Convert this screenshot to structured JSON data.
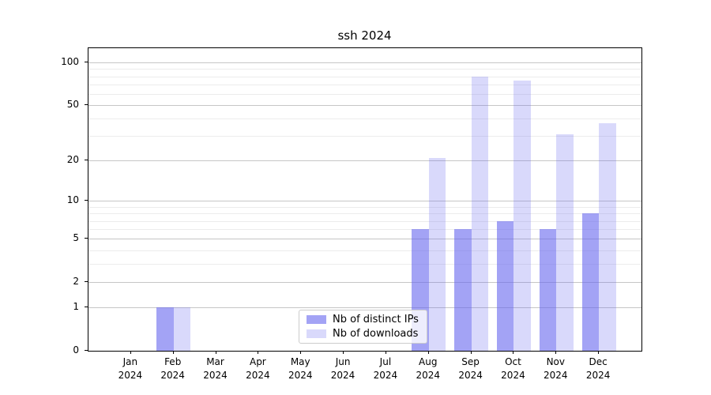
{
  "title": "ssh 2024",
  "chart_data": {
    "type": "bar",
    "title": "ssh 2024",
    "categories": [
      "Jan 2024",
      "Feb 2024",
      "Mar 2024",
      "Apr 2024",
      "May 2024",
      "Jun 2024",
      "Jul 2024",
      "Aug 2024",
      "Sep 2024",
      "Oct 2024",
      "Nov 2024",
      "Dec 2024"
    ],
    "x_tick_line1": [
      "Jan",
      "Feb",
      "Mar",
      "Apr",
      "May",
      "Jun",
      "Jul",
      "Aug",
      "Sep",
      "Oct",
      "Nov",
      "Dec"
    ],
    "x_tick_line2": "2024",
    "series": [
      {
        "name": "Nb of distinct IPs",
        "color": "#6666ee",
        "alpha": 0.6,
        "values": [
          0,
          1,
          0,
          0,
          0,
          0,
          0,
          6,
          6,
          7,
          6,
          8
        ]
      },
      {
        "name": "Nb of downloads",
        "color": "#6666ee",
        "alpha": 0.25,
        "values": [
          0,
          1,
          0,
          0,
          0,
          0,
          0,
          21,
          80,
          75,
          31,
          37
        ]
      }
    ],
    "yscale": "log(1+y)",
    "yticks": [
      0,
      1,
      2,
      5,
      10,
      20,
      50,
      100
    ],
    "minor_yticks": [
      3,
      4,
      6,
      7,
      8,
      9,
      30,
      40,
      60,
      70,
      80,
      90
    ],
    "ylim": [
      0,
      126
    ],
    "grid": true,
    "legend_position": "inside lower center"
  },
  "legend": {
    "items": [
      {
        "label": "Nb of distinct IPs"
      },
      {
        "label": "Nb of downloads"
      }
    ]
  },
  "colors": {
    "bar_dark": "rgba(102,102,238,0.6)",
    "bar_light": "rgba(102,102,238,0.25)",
    "grid_major": "#c6c6c6",
    "grid_minor": "#ececec",
    "axis": "#000000"
  }
}
